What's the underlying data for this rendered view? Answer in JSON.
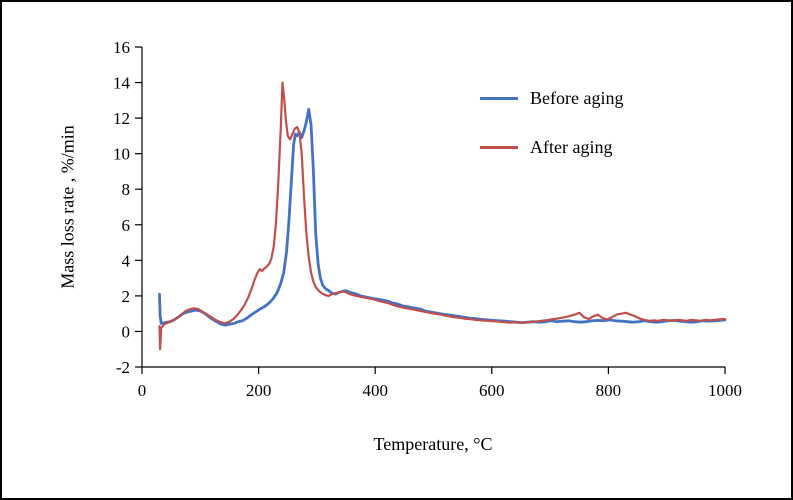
{
  "figure": {
    "background": "#ffffff",
    "border_color": "#000000"
  },
  "chart_data": {
    "type": "line",
    "title": "",
    "xlabel": "Temperature, °C",
    "ylabel": "Mass loss rate , %/min",
    "xlim": [
      0,
      1000
    ],
    "ylim": [
      -2,
      16
    ],
    "x_ticks": [
      0,
      200,
      400,
      600,
      800,
      1000
    ],
    "y_ticks": [
      -2,
      0,
      2,
      4,
      6,
      8,
      10,
      12,
      14,
      16
    ],
    "grid": false,
    "legend_position": "inside-top-right",
    "series": [
      {
        "id": "before-aging",
        "name": "Before aging",
        "color": "#4472C4",
        "width": 2.8,
        "points": [
          [
            30,
            2.1
          ],
          [
            31,
            0.9
          ],
          [
            33,
            0.45
          ],
          [
            40,
            0.5
          ],
          [
            48,
            0.55
          ],
          [
            55,
            0.65
          ],
          [
            62,
            0.8
          ],
          [
            70,
            1.0
          ],
          [
            78,
            1.1
          ],
          [
            85,
            1.15
          ],
          [
            92,
            1.2
          ],
          [
            100,
            1.15
          ],
          [
            106,
            1.05
          ],
          [
            112,
            0.9
          ],
          [
            120,
            0.7
          ],
          [
            128,
            0.55
          ],
          [
            135,
            0.42
          ],
          [
            142,
            0.35
          ],
          [
            150,
            0.4
          ],
          [
            158,
            0.45
          ],
          [
            165,
            0.55
          ],
          [
            172,
            0.6
          ],
          [
            180,
            0.75
          ],
          [
            188,
            0.95
          ],
          [
            195,
            1.1
          ],
          [
            202,
            1.25
          ],
          [
            210,
            1.4
          ],
          [
            218,
            1.6
          ],
          [
            225,
            1.85
          ],
          [
            232,
            2.2
          ],
          [
            238,
            2.7
          ],
          [
            243,
            3.3
          ],
          [
            248,
            4.5
          ],
          [
            252,
            6.2
          ],
          [
            256,
            8.3
          ],
          [
            260,
            10.5
          ],
          [
            263,
            11.1
          ],
          [
            266,
            11.0
          ],
          [
            270,
            11.2
          ],
          [
            274,
            10.9
          ],
          [
            278,
            11.3
          ],
          [
            282,
            11.8
          ],
          [
            286,
            12.5
          ],
          [
            290,
            11.6
          ],
          [
            294,
            9.0
          ],
          [
            298,
            5.5
          ],
          [
            302,
            3.8
          ],
          [
            306,
            3.0
          ],
          [
            310,
            2.6
          ],
          [
            315,
            2.4
          ],
          [
            320,
            2.3
          ],
          [
            326,
            2.15
          ],
          [
            332,
            2.1
          ],
          [
            338,
            2.2
          ],
          [
            344,
            2.25
          ],
          [
            350,
            2.3
          ],
          [
            356,
            2.2
          ],
          [
            362,
            2.15
          ],
          [
            368,
            2.1
          ],
          [
            375,
            2.0
          ],
          [
            382,
            1.95
          ],
          [
            390,
            1.9
          ],
          [
            398,
            1.85
          ],
          [
            406,
            1.8
          ],
          [
            414,
            1.75
          ],
          [
            422,
            1.7
          ],
          [
            430,
            1.6
          ],
          [
            438,
            1.55
          ],
          [
            446,
            1.45
          ],
          [
            454,
            1.4
          ],
          [
            462,
            1.35
          ],
          [
            470,
            1.3
          ],
          [
            478,
            1.25
          ],
          [
            486,
            1.15
          ],
          [
            494,
            1.1
          ],
          [
            502,
            1.05
          ],
          [
            512,
            1.0
          ],
          [
            522,
            0.95
          ],
          [
            532,
            0.9
          ],
          [
            542,
            0.85
          ],
          [
            552,
            0.8
          ],
          [
            562,
            0.75
          ],
          [
            572,
            0.72
          ],
          [
            582,
            0.68
          ],
          [
            592,
            0.65
          ],
          [
            602,
            0.62
          ],
          [
            612,
            0.6
          ],
          [
            622,
            0.58
          ],
          [
            632,
            0.55
          ],
          [
            642,
            0.52
          ],
          [
            652,
            0.5
          ],
          [
            662,
            0.52
          ],
          [
            672,
            0.55
          ],
          [
            682,
            0.52
          ],
          [
            692,
            0.55
          ],
          [
            702,
            0.6
          ],
          [
            712,
            0.55
          ],
          [
            722,
            0.58
          ],
          [
            732,
            0.6
          ],
          [
            742,
            0.55
          ],
          [
            752,
            0.52
          ],
          [
            762,
            0.55
          ],
          [
            772,
            0.6
          ],
          [
            782,
            0.62
          ],
          [
            792,
            0.6
          ],
          [
            802,
            0.65
          ],
          [
            812,
            0.6
          ],
          [
            822,
            0.58
          ],
          [
            832,
            0.55
          ],
          [
            842,
            0.52
          ],
          [
            852,
            0.55
          ],
          [
            862,
            0.6
          ],
          [
            872,
            0.55
          ],
          [
            882,
            0.52
          ],
          [
            892,
            0.55
          ],
          [
            902,
            0.6
          ],
          [
            912,
            0.62
          ],
          [
            922,
            0.58
          ],
          [
            932,
            0.55
          ],
          [
            942,
            0.52
          ],
          [
            952,
            0.55
          ],
          [
            962,
            0.6
          ],
          [
            972,
            0.58
          ],
          [
            982,
            0.6
          ],
          [
            992,
            0.62
          ],
          [
            1000,
            0.65
          ]
        ]
      },
      {
        "id": "after-aging",
        "name": "After aging",
        "color": "#C0504D",
        "width": 2.2,
        "points": [
          [
            30,
            0.3
          ],
          [
            31,
            -1.0
          ],
          [
            33,
            0.2
          ],
          [
            38,
            0.4
          ],
          [
            45,
            0.5
          ],
          [
            52,
            0.6
          ],
          [
            60,
            0.75
          ],
          [
            68,
            0.95
          ],
          [
            75,
            1.15
          ],
          [
            82,
            1.25
          ],
          [
            90,
            1.3
          ],
          [
            97,
            1.25
          ],
          [
            104,
            1.1
          ],
          [
            112,
            0.95
          ],
          [
            120,
            0.78
          ],
          [
            128,
            0.62
          ],
          [
            135,
            0.52
          ],
          [
            142,
            0.45
          ],
          [
            150,
            0.55
          ],
          [
            157,
            0.7
          ],
          [
            164,
            0.95
          ],
          [
            170,
            1.2
          ],
          [
            176,
            1.5
          ],
          [
            182,
            1.9
          ],
          [
            188,
            2.4
          ],
          [
            193,
            2.9
          ],
          [
            198,
            3.3
          ],
          [
            202,
            3.5
          ],
          [
            206,
            3.4
          ],
          [
            210,
            3.55
          ],
          [
            214,
            3.65
          ],
          [
            218,
            3.8
          ],
          [
            222,
            4.1
          ],
          [
            226,
            4.8
          ],
          [
            230,
            6.2
          ],
          [
            234,
            8.5
          ],
          [
            238,
            11.5
          ],
          [
            241,
            14.0
          ],
          [
            244,
            13.0
          ],
          [
            247,
            11.8
          ],
          [
            250,
            11.0
          ],
          [
            254,
            10.8
          ],
          [
            258,
            11.1
          ],
          [
            262,
            11.4
          ],
          [
            266,
            11.5
          ],
          [
            270,
            11.2
          ],
          [
            274,
            10.0
          ],
          [
            278,
            7.5
          ],
          [
            282,
            5.5
          ],
          [
            286,
            4.2
          ],
          [
            290,
            3.3
          ],
          [
            294,
            2.8
          ],
          [
            298,
            2.5
          ],
          [
            303,
            2.3
          ],
          [
            308,
            2.15
          ],
          [
            314,
            2.05
          ],
          [
            320,
            2.0
          ],
          [
            326,
            2.1
          ],
          [
            332,
            2.15
          ],
          [
            338,
            2.2
          ],
          [
            344,
            2.25
          ],
          [
            350,
            2.2
          ],
          [
            356,
            2.1
          ],
          [
            362,
            2.05
          ],
          [
            368,
            2.0
          ],
          [
            375,
            1.95
          ],
          [
            382,
            1.9
          ],
          [
            390,
            1.85
          ],
          [
            398,
            1.8
          ],
          [
            406,
            1.72
          ],
          [
            414,
            1.65
          ],
          [
            422,
            1.6
          ],
          [
            430,
            1.5
          ],
          [
            438,
            1.42
          ],
          [
            446,
            1.35
          ],
          [
            454,
            1.3
          ],
          [
            462,
            1.25
          ],
          [
            470,
            1.2
          ],
          [
            478,
            1.15
          ],
          [
            486,
            1.1
          ],
          [
            494,
            1.05
          ],
          [
            502,
            1.0
          ],
          [
            512,
            0.95
          ],
          [
            522,
            0.88
          ],
          [
            532,
            0.82
          ],
          [
            542,
            0.78
          ],
          [
            552,
            0.72
          ],
          [
            562,
            0.7
          ],
          [
            572,
            0.65
          ],
          [
            582,
            0.62
          ],
          [
            592,
            0.6
          ],
          [
            602,
            0.58
          ],
          [
            612,
            0.55
          ],
          [
            622,
            0.52
          ],
          [
            632,
            0.5
          ],
          [
            642,
            0.52
          ],
          [
            652,
            0.5
          ],
          [
            662,
            0.52
          ],
          [
            672,
            0.55
          ],
          [
            682,
            0.58
          ],
          [
            692,
            0.62
          ],
          [
            702,
            0.68
          ],
          [
            712,
            0.72
          ],
          [
            722,
            0.78
          ],
          [
            732,
            0.85
          ],
          [
            742,
            0.95
          ],
          [
            750,
            1.05
          ],
          [
            758,
            0.8
          ],
          [
            766,
            0.7
          ],
          [
            774,
            0.85
          ],
          [
            782,
            0.95
          ],
          [
            790,
            0.75
          ],
          [
            798,
            0.68
          ],
          [
            806,
            0.8
          ],
          [
            814,
            0.95
          ],
          [
            822,
            1.0
          ],
          [
            830,
            1.05
          ],
          [
            838,
            0.95
          ],
          [
            846,
            0.85
          ],
          [
            854,
            0.72
          ],
          [
            862,
            0.65
          ],
          [
            870,
            0.6
          ],
          [
            878,
            0.62
          ],
          [
            886,
            0.6
          ],
          [
            894,
            0.65
          ],
          [
            902,
            0.62
          ],
          [
            910,
            0.6
          ],
          [
            918,
            0.65
          ],
          [
            926,
            0.62
          ],
          [
            934,
            0.6
          ],
          [
            942,
            0.65
          ],
          [
            950,
            0.62
          ],
          [
            958,
            0.6
          ],
          [
            966,
            0.65
          ],
          [
            974,
            0.62
          ],
          [
            982,
            0.65
          ],
          [
            990,
            0.68
          ],
          [
            1000,
            0.7
          ]
        ]
      }
    ]
  }
}
